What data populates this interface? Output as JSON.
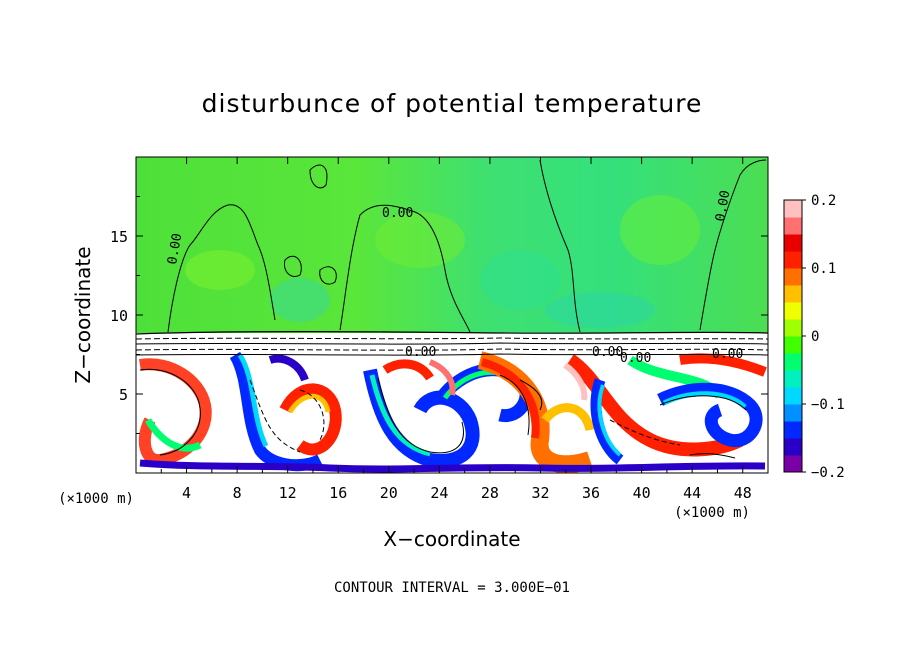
{
  "chart_data": {
    "type": "heatmap",
    "title": "disturbunce of potential temperature",
    "xlabel": "X−coordinate",
    "ylabel": "Z−coordinate",
    "x_unit": "(×1000 m)",
    "y_unit": "(×1000 m)",
    "footer": "CONTOUR INTERVAL = 3.000E−01",
    "xlim": [
      0,
      50
    ],
    "ylim": [
      0,
      20
    ],
    "x_ticks": [
      4,
      8,
      12,
      16,
      20,
      24,
      28,
      32,
      36,
      40,
      44,
      48
    ],
    "y_ticks": [
      5,
      10,
      15
    ],
    "colorbar": {
      "range": [
        -0.2,
        0.2
      ],
      "tick_values": [
        0.2,
        0.1,
        0,
        -0.1,
        -0.2
      ],
      "tick_labels": [
        "0.2",
        "0.1",
        "0",
        "−0.1",
        "−0.2"
      ],
      "colors": [
        "#7a00a8",
        "#2a00c8",
        "#0028ff",
        "#0090ff",
        "#00d8ff",
        "#00f0c0",
        "#00ff70",
        "#40ff00",
        "#a0ff00",
        "#f0ff00",
        "#ffc000",
        "#ff7000",
        "#ff2000",
        "#e80000",
        "#ff7070",
        "#ffc0c0"
      ]
    },
    "contour_labels": [
      "0.00",
      "0.00",
      "0.00",
      "0.00",
      "0.00",
      "0.00",
      "0.00"
    ],
    "regions": {
      "upper_layer": "near-zero disturbance (green), z ≈ 8.5–20",
      "inversion_band": "dense contour lines near z ≈ 7.5–9",
      "lower_layer": "turbulent eddies, −0.2 to 0.2, z ≈ 0–7.5"
    }
  }
}
